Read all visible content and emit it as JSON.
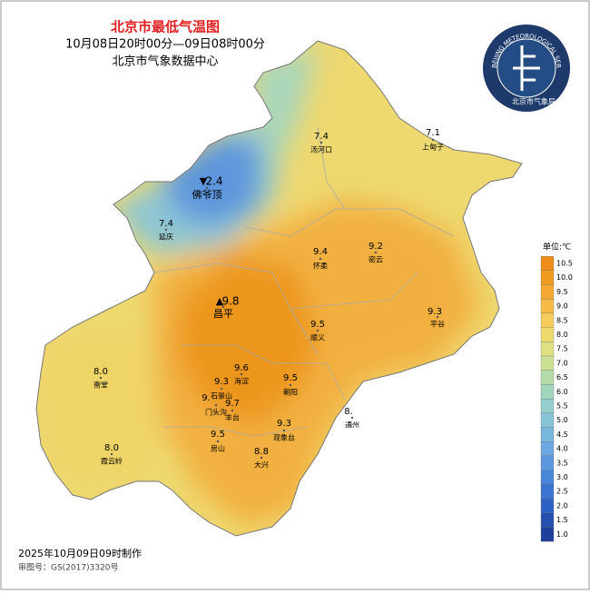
{
  "header": {
    "title": "北京市最低气温图",
    "subtitle": "10月08日20时00分—09日08时00分",
    "org": "北京市气象数据中心"
  },
  "logo": {
    "ring": "BEIJING METEOROLOGICAL SERVICE",
    "name": "北京市气象局"
  },
  "stations": [
    {
      "name": "汤河口",
      "temp": "7.4"
    },
    {
      "name": "上甸子",
      "temp": "7.1"
    },
    {
      "name": "佛爷顶",
      "temp": "2.4",
      "marker": "▼"
    },
    {
      "name": "延庆",
      "temp": "7.4"
    },
    {
      "name": "怀柔",
      "temp": "9.4"
    },
    {
      "name": "密云",
      "temp": "9.2"
    },
    {
      "name": "昌平",
      "temp": "9.8",
      "marker": "▲"
    },
    {
      "name": "平谷",
      "temp": "9.3"
    },
    {
      "name": "顺义",
      "temp": "9.5"
    },
    {
      "name": "海淀",
      "temp": "9.6"
    },
    {
      "name": "石景山",
      "temp": "9.3"
    },
    {
      "name": "朝阳",
      "temp": "9.5"
    },
    {
      "name": "门头沟",
      "temp": "9."
    },
    {
      "name": "丰台",
      "temp": "9.7"
    },
    {
      "name": "斋堂",
      "temp": "8.0"
    },
    {
      "name": "通州",
      "temp": "8."
    },
    {
      "name": "观象台",
      "temp": "9.3"
    },
    {
      "name": "房山",
      "temp": "9.5"
    },
    {
      "name": "大兴",
      "temp": "8.8"
    },
    {
      "name": "霞云岭",
      "temp": "8.0"
    }
  ],
  "legend": {
    "unit": "单位:℃",
    "ticks": [
      "10.5",
      "10.0",
      "9.5",
      "9.0",
      "8.5",
      "8.0",
      "7.5",
      "7.0",
      "6.5",
      "6.0",
      "5.5",
      "5.0",
      "4.5",
      "4.0",
      "3.5",
      "3.0",
      "2.5",
      "2.0",
      "1.5",
      "1.0"
    ],
    "colors": [
      "#ec8e18",
      "#f09a22",
      "#f4a832",
      "#f6bb45",
      "#f5cd5c",
      "#eedb6e",
      "#dfe07f",
      "#cbe094",
      "#b4dba8",
      "#a1d5bd",
      "#93cdcc",
      "#86c3d6",
      "#78b6dc",
      "#6aa8df",
      "#5b98dd",
      "#4a86d8",
      "#3a74d0",
      "#2d62c4",
      "#2550b0",
      "#1f3f9a"
    ]
  },
  "footer": {
    "made": "2025年10月09日09时制作",
    "approval": "审图号：GS(2017)3320号"
  }
}
